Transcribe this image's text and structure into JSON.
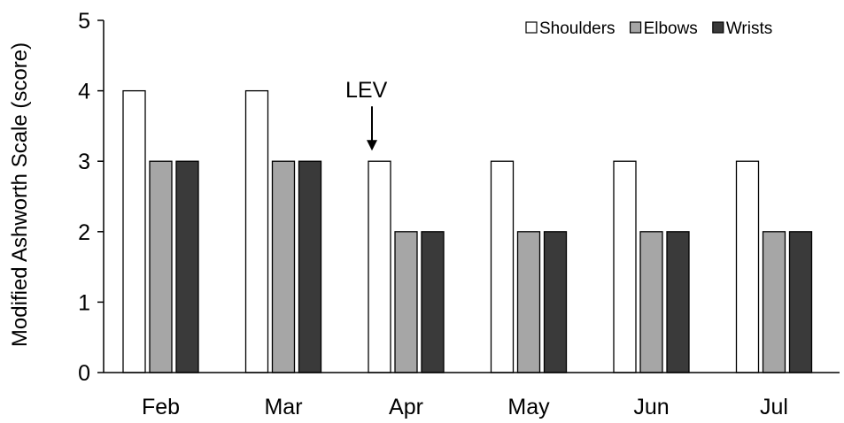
{
  "chart_data": {
    "type": "bar",
    "title": "",
    "xlabel": "",
    "ylabel": "Modified Ashworth Scale (score)",
    "ylim": [
      0,
      5
    ],
    "yticks": [
      0,
      1,
      2,
      3,
      4,
      5
    ],
    "grid": false,
    "legend_position": "top-right",
    "categories": [
      "Feb",
      "Mar",
      "Apr",
      "May",
      "Jun",
      "Jul"
    ],
    "series": [
      {
        "name": "Shoulders",
        "values": [
          4,
          4,
          3,
          3,
          3,
          3
        ],
        "color": "#ffffff"
      },
      {
        "name": "Elbows",
        "values": [
          3,
          3,
          2,
          2,
          2,
          2
        ],
        "color": "#a6a6a6"
      },
      {
        "name": "Wrists",
        "values": [
          3,
          3,
          2,
          2,
          2,
          2
        ],
        "color": "#3a3a3a"
      }
    ],
    "annotations": [
      {
        "text": "LEV",
        "category": "Apr",
        "series": "Shoulders",
        "arrow": "down"
      }
    ]
  }
}
